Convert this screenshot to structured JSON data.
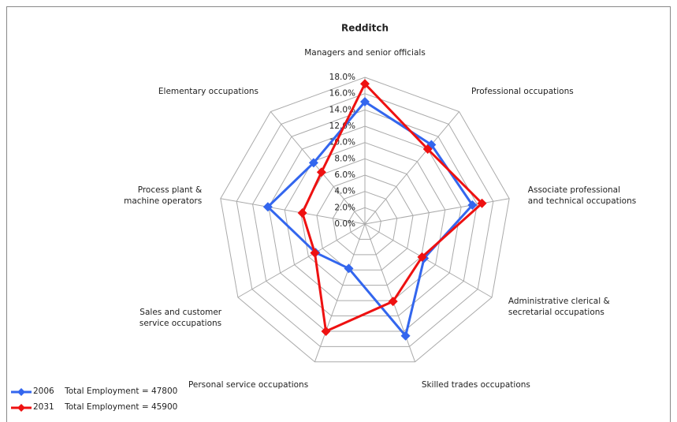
{
  "chart_data": {
    "type": "radar",
    "title": "Redditch",
    "categories": [
      "Managers and senior officials",
      "Professional occupations",
      "Associate professional\nand technical occupations",
      "Administrative clerical &\nsecretarial occupations",
      "Skilled trades occupations",
      "Personal service occupations",
      "Sales and customer\nservice occupations",
      "Process plant &\nmachine operators",
      "Elementary occupations"
    ],
    "series": [
      {
        "name": "2006    Total Employment = 47800",
        "color": "#3366ee",
        "values": [
          15.0,
          12.7,
          13.4,
          8.4,
          14.6,
          5.8,
          7.0,
          12.1,
          9.8
        ]
      },
      {
        "name": "2031    Total Employment = 45900",
        "color": "#ee1111",
        "values": [
          17.2,
          12.0,
          14.6,
          8.1,
          10.1,
          14.0,
          7.1,
          7.8,
          8.3
        ]
      }
    ],
    "ylim": [
      0,
      18
    ],
    "yticks": [
      {
        "value": 0,
        "label": "0.0%"
      },
      {
        "value": 2,
        "label": "2.0%"
      },
      {
        "value": 4,
        "label": "4.0%"
      },
      {
        "value": 6,
        "label": "6.0%"
      },
      {
        "value": 8,
        "label": "8.0%"
      },
      {
        "value": 10,
        "label": "10.0%"
      },
      {
        "value": 12,
        "label": "12.0%"
      },
      {
        "value": 14,
        "label": "14.0%"
      },
      {
        "value": 16,
        "label": "16.0%"
      },
      {
        "value": 18,
        "label": "18.0%"
      }
    ],
    "grid": true,
    "legend": "bottom-left"
  }
}
